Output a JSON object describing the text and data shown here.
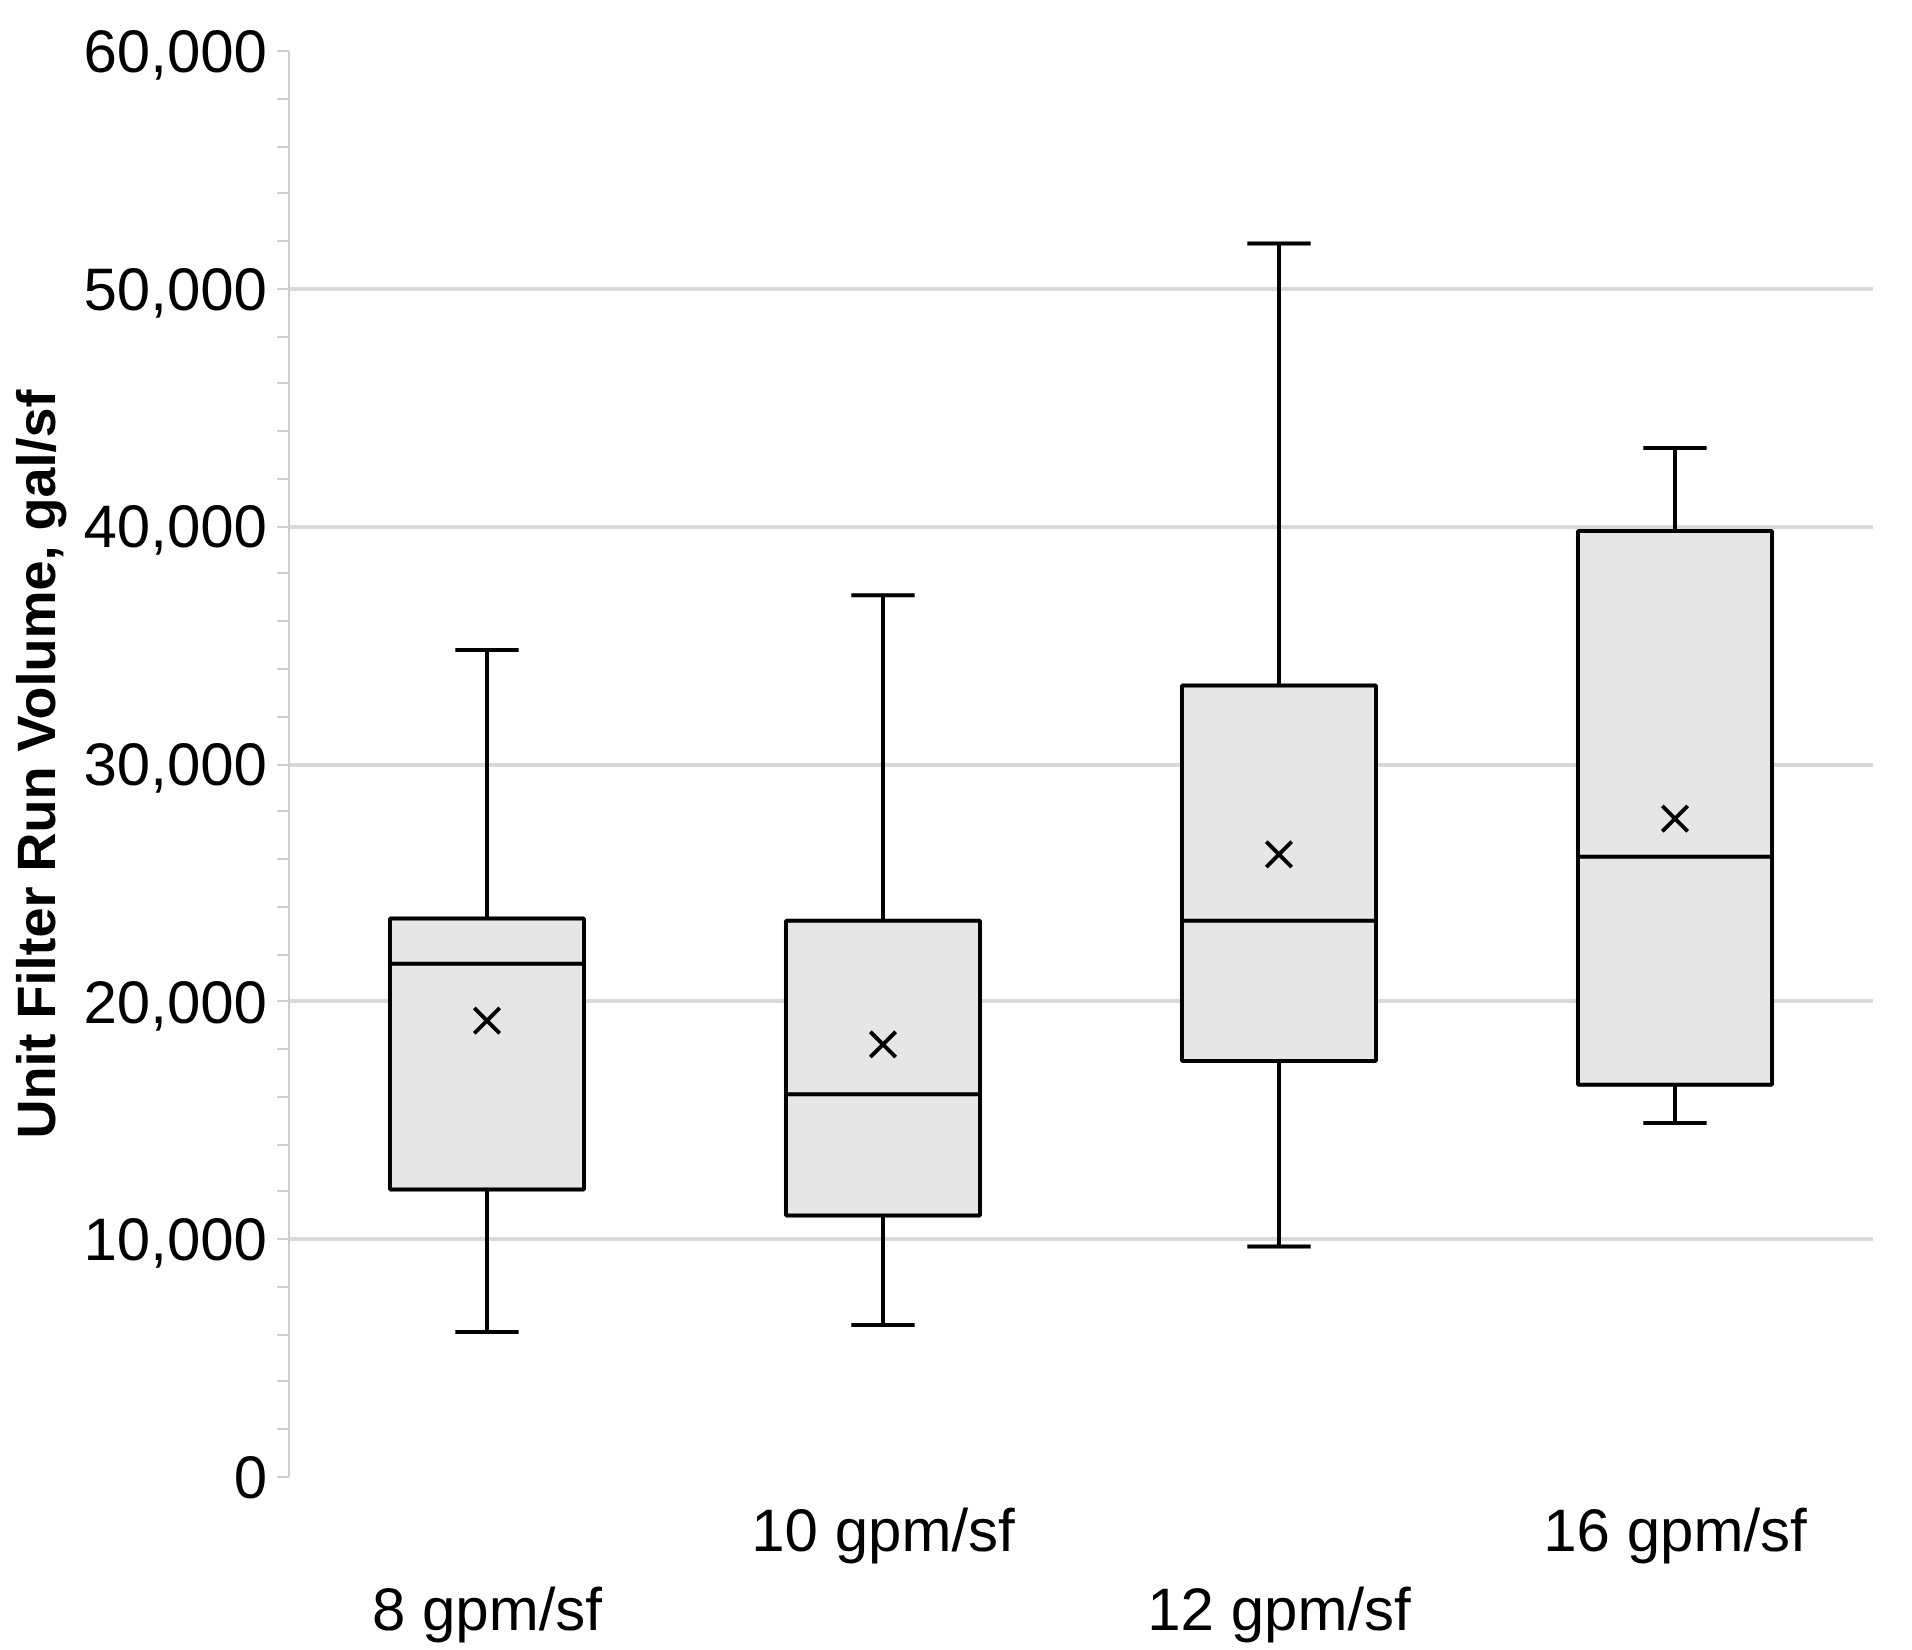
{
  "chart_data": {
    "type": "box",
    "ylabel": "Unit Filter Run Volume, gal/sf",
    "categories": [
      "8 gpm/sf",
      "10 gpm/sf",
      "12 gpm/sf",
      "16 gpm/sf"
    ],
    "boxes": [
      {
        "low": 6100,
        "q1": 12100,
        "median": 21600,
        "q3": 23500,
        "high": 34800,
        "mean": 19200
      },
      {
        "low": 6400,
        "q1": 11000,
        "median": 16100,
        "q3": 23400,
        "high": 37100,
        "mean": 18200
      },
      {
        "low": 9700,
        "q1": 17500,
        "median": 23400,
        "q3": 33300,
        "high": 51900,
        "mean": 26200
      },
      {
        "low": 14900,
        "q1": 16500,
        "median": 26100,
        "q3": 39800,
        "high": 43300,
        "mean": 27700
      }
    ],
    "color": "#e6e6e6",
    "ylim": [
      0,
      60000
    ],
    "yticks": [
      {
        "value": 0,
        "label": "0"
      },
      {
        "value": 10000,
        "label": "10,000"
      },
      {
        "value": 20000,
        "label": "20,000"
      },
      {
        "value": 30000,
        "label": "30,000"
      },
      {
        "value": 40000,
        "label": "40,000"
      },
      {
        "value": 50000,
        "label": "50,000"
      },
      {
        "value": 60000,
        "label": "60,000"
      }
    ],
    "grid": "y"
  }
}
